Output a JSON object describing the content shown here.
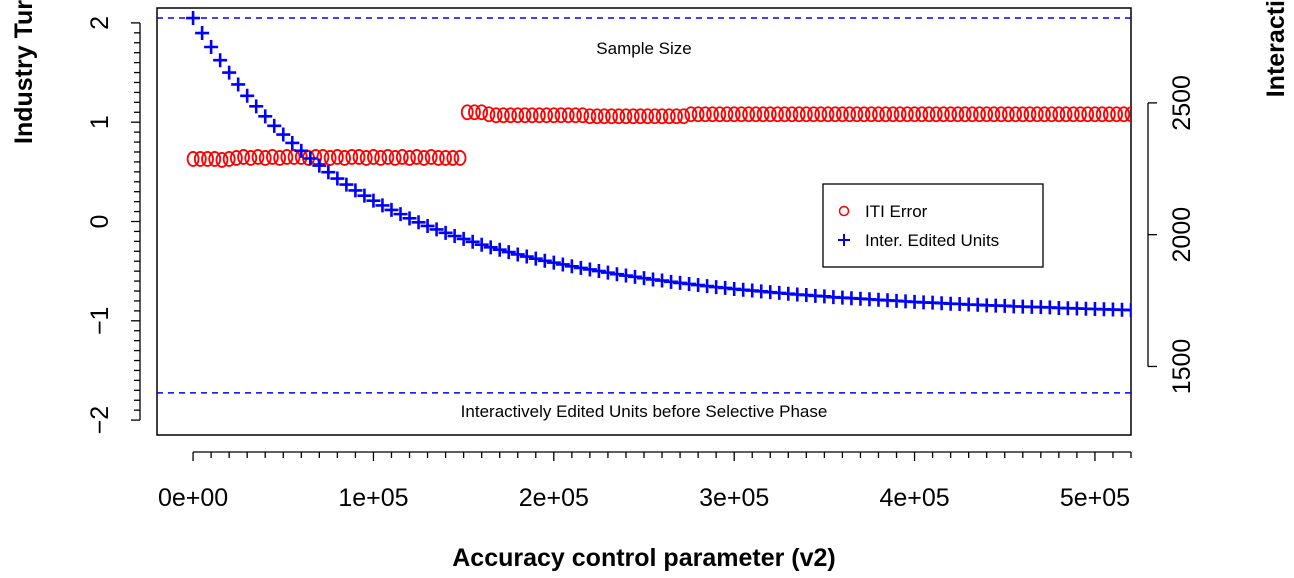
{
  "chart_data": {
    "type": "scatter",
    "xlabel": "Accuracy control parameter (v2)",
    "ylabel_left": "Industry Tur",
    "ylabel_right": "Interacti",
    "xlim": [
      -20000,
      520000
    ],
    "ylim_left": [
      -2.15,
      2.15
    ],
    "ylim_right": [
      1240,
      2860
    ],
    "x_ticks": [
      0,
      100000,
      200000,
      300000,
      400000,
      500000
    ],
    "x_tick_labels": [
      "0e+00",
      "1e+05",
      "2e+05",
      "3e+05",
      "4e+05",
      "5e+05"
    ],
    "y_left_ticks": [
      -2,
      -1,
      0,
      1,
      2
    ],
    "y_left_tick_labels": [
      "−2",
      "−1",
      "0",
      "1",
      "2"
    ],
    "y_right_ticks": [
      1500,
      2000,
      2500
    ],
    "y_right_tick_labels": [
      "1500",
      "2000",
      "2500"
    ],
    "grid": false,
    "legend_position": "right",
    "reference_lines": [
      {
        "label": "Sample Size",
        "axis": "right",
        "y": 2822,
        "color": "#0000ff"
      },
      {
        "label": "Interactively Edited Units before Selective Phase",
        "axis": "right",
        "y": 1400,
        "color": "#0000ff"
      }
    ],
    "series": [
      {
        "name": "ITI Error",
        "axis": "left",
        "marker": "circle",
        "color": "#ff0000",
        "x_start": 0,
        "x_step": 4000,
        "count": 131,
        "values": [
          0.63,
          0.63,
          0.63,
          0.63,
          0.62,
          0.63,
          0.64,
          0.65,
          0.64,
          0.65,
          0.64,
          0.65,
          0.64,
          0.65,
          0.65,
          0.65,
          0.64,
          0.65,
          0.65,
          0.64,
          0.65,
          0.64,
          0.65,
          0.65,
          0.64,
          0.65,
          0.64,
          0.65,
          0.64,
          0.65,
          0.64,
          0.65,
          0.64,
          0.65,
          0.64,
          0.64,
          0.64,
          0.64,
          1.1,
          1.1,
          1.1,
          1.08,
          1.07,
          1.07,
          1.07,
          1.07,
          1.07,
          1.07,
          1.07,
          1.07,
          1.07,
          1.07,
          1.07,
          1.07,
          1.07,
          1.06,
          1.06,
          1.06,
          1.06,
          1.06,
          1.06,
          1.06,
          1.06,
          1.06,
          1.06,
          1.06,
          1.06,
          1.06,
          1.06,
          1.08,
          1.08,
          1.08,
          1.08,
          1.08,
          1.08,
          1.08,
          1.08,
          1.08,
          1.08,
          1.08,
          1.08,
          1.08,
          1.08,
          1.08,
          1.08,
          1.08,
          1.08,
          1.08,
          1.08,
          1.08,
          1.08,
          1.08,
          1.08,
          1.08,
          1.08,
          1.08,
          1.08,
          1.08,
          1.08,
          1.08,
          1.08,
          1.08,
          1.08,
          1.08,
          1.08,
          1.08,
          1.08,
          1.08,
          1.08,
          1.08,
          1.08,
          1.08,
          1.08,
          1.08,
          1.08,
          1.08,
          1.08,
          1.08,
          1.08,
          1.08,
          1.08,
          1.08,
          1.08,
          1.08,
          1.08,
          1.08,
          1.08,
          1.08,
          1.08,
          1.08,
          1.08
        ]
      },
      {
        "name": "Inter. Edited Units",
        "axis": "right",
        "marker": "plus",
        "color": "#0000ff",
        "x_start": 0,
        "x_step": 5000,
        "count": 105,
        "values": [
          2822,
          2765,
          2712,
          2662,
          2615,
          2570,
          2527,
          2487,
          2449,
          2413,
          2380,
          2348,
          2318,
          2289,
          2262,
          2237,
          2213,
          2190,
          2168,
          2148,
          2129,
          2111,
          2094,
          2078,
          2062,
          2047,
          2033,
          2020,
          2007,
          1995,
          1984,
          1973,
          1962,
          1952,
          1943,
          1934,
          1925,
          1917,
          1909,
          1901,
          1894,
          1887,
          1880,
          1874,
          1868,
          1862,
          1856,
          1850,
          1845,
          1840,
          1835,
          1830,
          1826,
          1821,
          1817,
          1813,
          1809,
          1805,
          1801,
          1798,
          1794,
          1791,
          1788,
          1785,
          1782,
          1779,
          1776,
          1773,
          1771,
          1768,
          1766,
          1763,
          1761,
          1759,
          1757,
          1755,
          1753,
          1751,
          1749,
          1747,
          1745,
          1743,
          1742,
          1740,
          1738,
          1737,
          1735,
          1734,
          1732,
          1731,
          1730,
          1728,
          1727,
          1726,
          1725,
          1724,
          1722,
          1721,
          1720,
          1719,
          1718,
          1717,
          1716,
          1715,
          1714
        ]
      }
    ]
  }
}
